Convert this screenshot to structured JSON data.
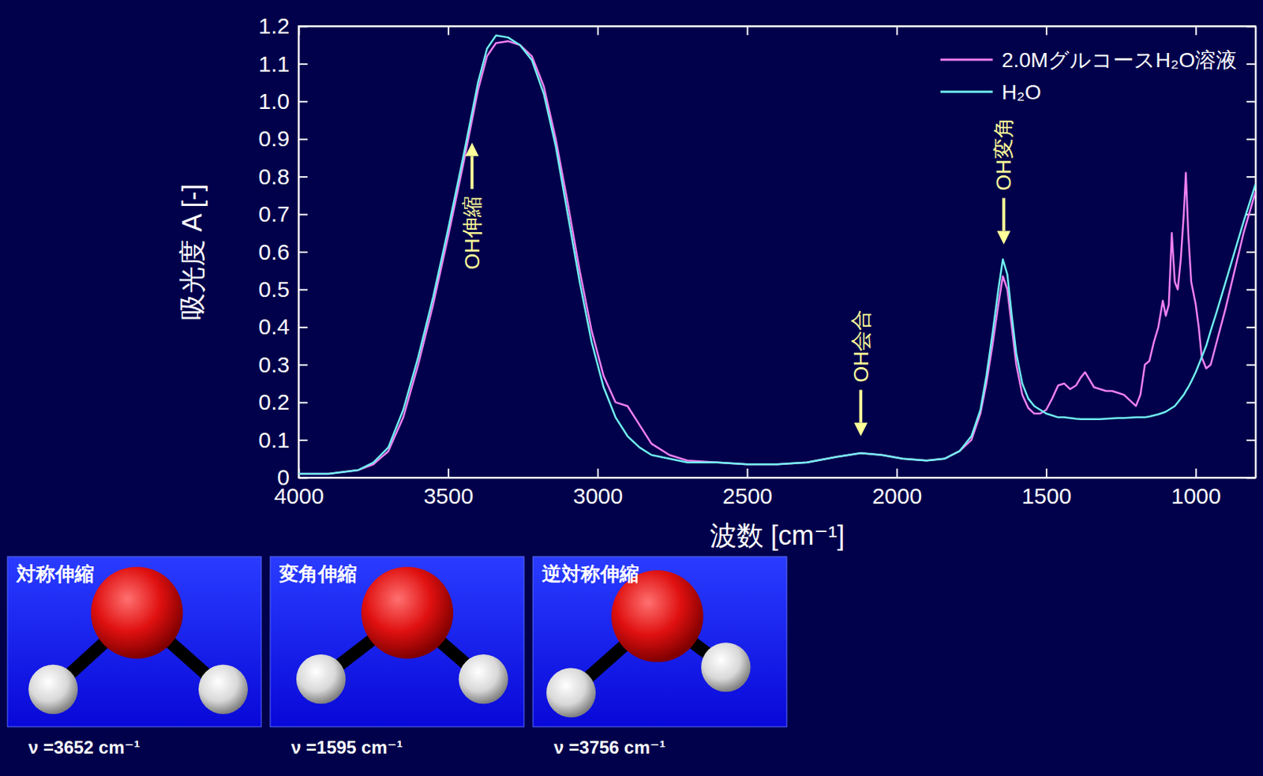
{
  "chart_data": {
    "type": "line",
    "x_label": "波数 [cm⁻¹]",
    "y_label": "吸光度 A [-]",
    "xlim": [
      4000,
      800
    ],
    "xticks": [
      4000,
      3500,
      3000,
      2500,
      2000,
      1500,
      1000
    ],
    "ylim": [
      0,
      1.2
    ],
    "yticks": [
      0,
      0.1,
      0.2,
      0.3,
      0.4,
      0.5,
      0.6,
      0.7,
      0.8,
      0.9,
      {
        "value": 1,
        "label": "1.0"
      },
      1.1,
      1.2
    ],
    "grid": false,
    "legend": "upper right",
    "x": [
      4000,
      3900,
      3800,
      3750,
      3700,
      3650,
      3600,
      3550,
      3500,
      3450,
      3400,
      3370,
      3340,
      3300,
      3260,
      3220,
      3180,
      3140,
      3100,
      3060,
      3020,
      2980,
      2940,
      2900,
      2860,
      2820,
      2760,
      2700,
      2600,
      2500,
      2400,
      2300,
      2200,
      2120,
      2050,
      1980,
      1900,
      1840,
      1790,
      1750,
      1720,
      1700,
      1680,
      1660,
      1645,
      1630,
      1615,
      1600,
      1580,
      1560,
      1540,
      1520,
      1500,
      1480,
      1460,
      1440,
      1420,
      1400,
      1385,
      1370,
      1355,
      1340,
      1320,
      1300,
      1280,
      1260,
      1240,
      1220,
      1200,
      1185,
      1170,
      1155,
      1140,
      1125,
      1110,
      1100,
      1090,
      1080,
      1070,
      1060,
      1050,
      1040,
      1033,
      1025,
      1015,
      1000,
      990,
      980,
      965,
      950,
      930,
      900,
      870,
      840,
      800
    ],
    "series": [
      {
        "name": "2.0MグルコースH₂O溶液",
        "color": "#f080f0",
        "values": [
          0.01,
          0.01,
          0.02,
          0.035,
          0.07,
          0.16,
          0.3,
          0.46,
          0.64,
          0.83,
          1.03,
          1.12,
          1.155,
          1.16,
          1.15,
          1.12,
          1.04,
          0.9,
          0.73,
          0.55,
          0.39,
          0.27,
          0.2,
          0.19,
          0.14,
          0.09,
          0.06,
          0.045,
          0.04,
          0.035,
          0.035,
          0.04,
          0.055,
          0.065,
          0.06,
          0.05,
          0.045,
          0.05,
          0.07,
          0.1,
          0.17,
          0.25,
          0.35,
          0.46,
          0.535,
          0.5,
          0.4,
          0.3,
          0.22,
          0.185,
          0.17,
          0.17,
          0.18,
          0.21,
          0.245,
          0.25,
          0.235,
          0.245,
          0.265,
          0.28,
          0.26,
          0.24,
          0.235,
          0.23,
          0.23,
          0.225,
          0.22,
          0.205,
          0.19,
          0.22,
          0.3,
          0.31,
          0.36,
          0.4,
          0.47,
          0.43,
          0.46,
          0.65,
          0.52,
          0.5,
          0.58,
          0.7,
          0.81,
          0.65,
          0.52,
          0.46,
          0.4,
          0.32,
          0.29,
          0.3,
          0.36,
          0.45,
          0.55,
          0.65,
          0.76
        ]
      },
      {
        "name": "H₂O",
        "color": "#70f0f0",
        "values": [
          0.01,
          0.01,
          0.02,
          0.04,
          0.08,
          0.18,
          0.32,
          0.48,
          0.66,
          0.85,
          1.05,
          1.14,
          1.175,
          1.17,
          1.15,
          1.11,
          1.02,
          0.88,
          0.7,
          0.52,
          0.36,
          0.24,
          0.16,
          0.11,
          0.08,
          0.06,
          0.05,
          0.04,
          0.04,
          0.035,
          0.035,
          0.04,
          0.055,
          0.065,
          0.06,
          0.05,
          0.045,
          0.05,
          0.07,
          0.11,
          0.18,
          0.27,
          0.38,
          0.5,
          0.58,
          0.54,
          0.43,
          0.33,
          0.25,
          0.21,
          0.19,
          0.18,
          0.17,
          0.165,
          0.16,
          0.16,
          0.158,
          0.156,
          0.155,
          0.155,
          0.155,
          0.155,
          0.155,
          0.156,
          0.157,
          0.158,
          0.158,
          0.159,
          0.16,
          0.16,
          0.16,
          0.162,
          0.165,
          0.168,
          0.172,
          0.175,
          0.18,
          0.185,
          0.19,
          0.2,
          0.21,
          0.22,
          0.23,
          0.24,
          0.255,
          0.28,
          0.3,
          0.32,
          0.35,
          0.39,
          0.44,
          0.52,
          0.6,
          0.68,
          0.78
        ]
      }
    ],
    "annotations": [
      {
        "text": "OH伸縮",
        "x": 3420,
        "y": 0.89,
        "arrow": "up"
      },
      {
        "text": "OH会合",
        "x": 2120,
        "y": 0.11,
        "arrow": "down"
      },
      {
        "text": "OH変角",
        "x": 1642,
        "y": 0.62,
        "arrow": "down"
      }
    ]
  },
  "insets": [
    {
      "label": "対称伸縮",
      "caption": "ν =3652 cm⁻¹"
    },
    {
      "label": "変角伸縮",
      "caption": "ν =1595 cm⁻¹"
    },
    {
      "label": "逆対称伸縮",
      "caption": "ν =3756 cm⁻¹"
    }
  ]
}
